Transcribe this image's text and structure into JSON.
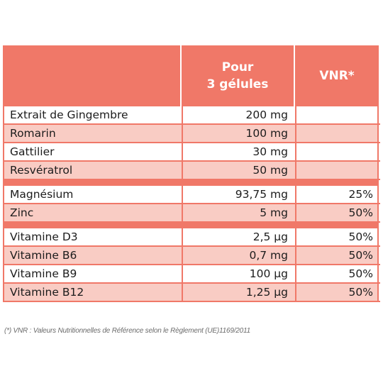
{
  "header": {
    "name": "",
    "pour_line1": "Pour",
    "pour_line2": "3 gélules",
    "vnr": "VNR*"
  },
  "group1": [
    {
      "name": "Extrait de Gingembre",
      "amount": "200 mg",
      "vnr": ""
    },
    {
      "name": "Romarin",
      "amount": "100 mg",
      "vnr": ""
    },
    {
      "name": "Gattilier",
      "amount": "30 mg",
      "vnr": ""
    },
    {
      "name": "Resvératrol",
      "amount": "50 mg",
      "vnr": ""
    }
  ],
  "group2": [
    {
      "name": "Magnésium",
      "amount": "93,75 mg",
      "vnr": "25%"
    },
    {
      "name": "Zinc",
      "amount": "5 mg",
      "vnr": "50%"
    }
  ],
  "group3": [
    {
      "name": "Vitamine D3",
      "amount": "2,5 µg",
      "vnr": "50%"
    },
    {
      "name": "Vitamine B6",
      "amount": "0,7 mg",
      "vnr": "50%"
    },
    {
      "name": "Vitamine B9",
      "amount": "100 µg",
      "vnr": "50%"
    },
    {
      "name": "Vitamine B12",
      "amount": "1,25 µg",
      "vnr": "50%"
    }
  ],
  "footnote": "(*) VNR : Valeurs Nutritionnelles de Référence selon le Règlement (UE)1169/2011"
}
